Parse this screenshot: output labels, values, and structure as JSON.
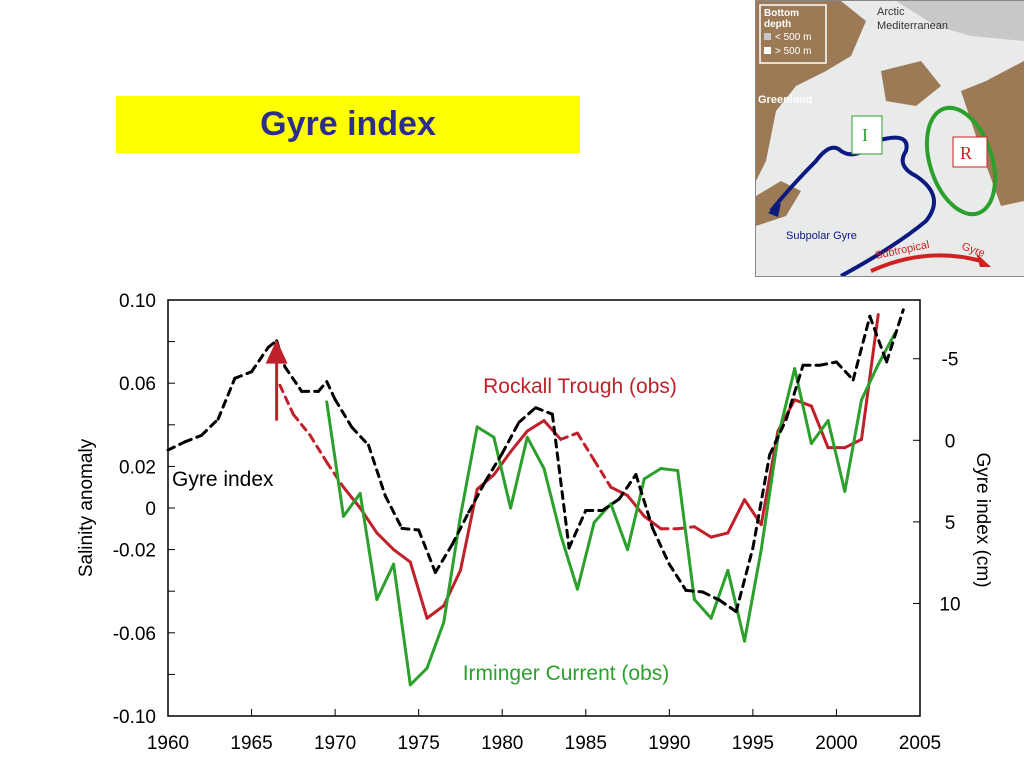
{
  "title": "Gyre index",
  "colors": {
    "banner_bg": "#ffff00",
    "banner_text": "#2d2d8f",
    "rockall": "#c0202a",
    "irminger": "#2ca02c",
    "gyre": "#000000",
    "arrow": "#c0202a"
  },
  "map": {
    "legend_title_1": "Bottom",
    "legend_title_2": "depth",
    "legend_shallow": "< 500 m",
    "legend_deep": "> 500 m",
    "arctic_1": "Arctic",
    "arctic_2": "Mediterranean",
    "greenland": "Greenland",
    "subpolar": "Subpolar Gyre",
    "subtropical_1": "Subtropical",
    "subtropical_2": "Gyre",
    "marker_i": "I",
    "marker_r": "R"
  },
  "chart_data": {
    "type": "line",
    "xlabel": "",
    "ylabel": "Salinity anomaly",
    "ylabel_right": "Gyre index (cm)",
    "xlim": [
      1960,
      2005
    ],
    "ylim": [
      -0.1,
      0.1
    ],
    "x_ticks": [
      1960,
      1965,
      1970,
      1975,
      1980,
      1985,
      1990,
      1995,
      2000,
      2005
    ],
    "x_tick_labels": [
      "1960",
      "1965",
      "1970",
      "1975",
      "1980",
      "1985",
      "1990",
      "1995",
      "2000",
      "2005"
    ],
    "y_ticks": [
      0.1,
      0.06,
      0.02,
      0,
      -0.02,
      -0.06,
      -0.1
    ],
    "y_tick_labels": [
      "0.10",
      "0.06",
      "0.02",
      "0",
      "-0.02",
      "-0.06",
      "-0.10"
    ],
    "right_axis": {
      "ylim": [
        16.9,
        -8.6
      ],
      "ticks": [
        -5,
        0,
        5,
        10
      ],
      "tick_labels": [
        "-5",
        "0",
        "5",
        "10"
      ]
    },
    "series": [
      {
        "name": "Rockall Trough (obs)",
        "axis": "left",
        "style": "solid-with-dashed-gaps",
        "points": [
          [
            1966.7,
            0.059
          ],
          [
            1967.5,
            0.045
          ],
          [
            1968.5,
            0.035
          ],
          [
            1969.5,
            0.022
          ],
          [
            1970.5,
            0.01
          ],
          [
            1971.5,
            0.0
          ],
          [
            1972.5,
            -0.012
          ],
          [
            1973.5,
            -0.02
          ],
          [
            1974.5,
            -0.026
          ],
          [
            1975.5,
            -0.053
          ],
          [
            1976.5,
            -0.047
          ],
          [
            1977.5,
            -0.03
          ],
          [
            1978.5,
            0.009
          ],
          [
            1979.5,
            0.016
          ],
          [
            1980.5,
            0.027
          ],
          [
            1981.5,
            0.037
          ],
          [
            1982.5,
            0.042
          ],
          [
            1983.5,
            0.033
          ],
          [
            1984.5,
            0.036
          ],
          [
            1985.5,
            0.023
          ],
          [
            1986.5,
            0.01
          ],
          [
            1987.5,
            0.006
          ],
          [
            1988.5,
            -0.004
          ],
          [
            1989.5,
            -0.01
          ],
          [
            1990.5,
            -0.01
          ],
          [
            1991.5,
            -0.009
          ],
          [
            1992.5,
            -0.014
          ],
          [
            1993.5,
            -0.012
          ],
          [
            1994.5,
            0.004
          ],
          [
            1995.5,
            -0.008
          ],
          [
            1996.5,
            0.037
          ],
          [
            1997.5,
            0.052
          ],
          [
            1998.5,
            0.049
          ],
          [
            1999.5,
            0.029
          ],
          [
            2000.5,
            0.029
          ],
          [
            2001.5,
            0.033
          ],
          [
            2002.5,
            0.093
          ]
        ],
        "dashed_segments": [
          [
            1966.7,
            1970.5
          ],
          [
            1983.5,
            1986.5
          ],
          [
            1989.5,
            1991.5
          ]
        ]
      },
      {
        "name": "Irminger Current (obs)",
        "axis": "left",
        "style": "solid",
        "points": [
          [
            1969.5,
            0.051
          ],
          [
            1970.5,
            -0.004
          ],
          [
            1971.5,
            0.007
          ],
          [
            1972.5,
            -0.044
          ],
          [
            1973.5,
            -0.027
          ],
          [
            1974.5,
            -0.085
          ],
          [
            1975.5,
            -0.077
          ],
          [
            1976.5,
            -0.055
          ],
          [
            1977.5,
            -0.004
          ],
          [
            1978.5,
            0.039
          ],
          [
            1979.5,
            0.034
          ],
          [
            1980.5,
            0.0
          ],
          [
            1981.5,
            0.034
          ],
          [
            1982.5,
            0.019
          ],
          [
            1983.5,
            -0.013
          ],
          [
            1984.5,
            -0.039
          ],
          [
            1985.5,
            -0.007
          ],
          [
            1986.5,
            0.002
          ],
          [
            1987.5,
            -0.02
          ],
          [
            1988.5,
            0.014
          ],
          [
            1989.5,
            0.019
          ],
          [
            1990.5,
            0.018
          ],
          [
            1991.5,
            -0.044
          ],
          [
            1992.5,
            -0.053
          ],
          [
            1993.5,
            -0.03
          ],
          [
            1994.5,
            -0.064
          ],
          [
            1995.5,
            -0.02
          ],
          [
            1996.5,
            0.034
          ],
          [
            1997.5,
            0.067
          ],
          [
            1998.5,
            0.031
          ],
          [
            1999.5,
            0.042
          ],
          [
            2000.5,
            0.008
          ],
          [
            2001.5,
            0.052
          ],
          [
            2002.5,
            0.069
          ],
          [
            2003.5,
            0.084
          ]
        ]
      },
      {
        "name": "Gyre index",
        "axis": "right",
        "style": "dashed",
        "points": [
          [
            1960,
            0.6
          ],
          [
            1961,
            0.1
          ],
          [
            1962,
            -0.3
          ],
          [
            1963,
            -1.3
          ],
          [
            1964,
            -3.8
          ],
          [
            1965,
            -4.2
          ],
          [
            1966,
            -5.7
          ],
          [
            1966.5,
            -6.1
          ],
          [
            1967,
            -4.5
          ],
          [
            1968,
            -3.0
          ],
          [
            1969,
            -3.0
          ],
          [
            1969.5,
            -3.6
          ],
          [
            1970,
            -2.5
          ],
          [
            1971,
            -0.8
          ],
          [
            1972,
            0.3
          ],
          [
            1973,
            3.4
          ],
          [
            1974,
            5.4
          ],
          [
            1975,
            5.5
          ],
          [
            1976,
            8.1
          ],
          [
            1977,
            6.4
          ],
          [
            1978,
            4.4
          ],
          [
            1979,
            2.5
          ],
          [
            1980,
            0.8
          ],
          [
            1981,
            -1.1
          ],
          [
            1982,
            -2.0
          ],
          [
            1983,
            -1.6
          ],
          [
            1984,
            6.6
          ],
          [
            1985,
            4.3
          ],
          [
            1986,
            4.3
          ],
          [
            1987,
            3.6
          ],
          [
            1988,
            2.1
          ],
          [
            1989,
            5.4
          ],
          [
            1990,
            7.6
          ],
          [
            1991,
            9.2
          ],
          [
            1992,
            9.3
          ],
          [
            1993,
            9.8
          ],
          [
            1994,
            10.5
          ],
          [
            1995,
            6.6
          ],
          [
            1996,
            0.9
          ],
          [
            1997,
            -1.3
          ],
          [
            1998,
            -4.6
          ],
          [
            1999,
            -4.6
          ],
          [
            2000,
            -4.8
          ],
          [
            2001,
            -3.7
          ],
          [
            2002,
            -7.6
          ],
          [
            2003,
            -4.8
          ],
          [
            2004,
            -8.0
          ]
        ]
      }
    ],
    "annotations": {
      "rockall_label": "Rockall Trough (obs)",
      "irminger_label": "Irminger Current (obs)",
      "gyre_label": "Gyre index"
    },
    "arrow": {
      "x": 1966.5,
      "y_from": 0.042,
      "y_to": 0.079
    }
  }
}
